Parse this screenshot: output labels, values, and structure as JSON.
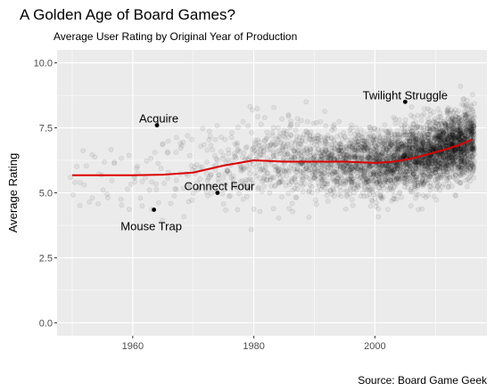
{
  "chart_data": {
    "type": "scatter",
    "title": "A Golden Age of Board Games?",
    "subtitle": "Average User Rating by Original Year of Production",
    "xlabel": "",
    "ylabel": "Average Rating",
    "caption": "Source: Board Game Geek",
    "xlim": [
      1947.5,
      2018.5
    ],
    "ylim": [
      -0.5,
      10.5
    ],
    "x_ticks": [
      1960,
      1980,
      2000
    ],
    "y_ticks": [
      0.0,
      2.5,
      5.0,
      7.5,
      10.0
    ],
    "y_tick_labels": [
      "0.0",
      "2.5",
      "5.0",
      "7.5",
      "10.0"
    ],
    "grid": true,
    "colors": {
      "panel": "#ebebeb",
      "grid": "#ffffff",
      "points": "#000000",
      "smooth": "#dd0000"
    },
    "scatter_density": {
      "description_free": true,
      "points_alpha": 0.1,
      "year_range": [
        1950,
        2016
      ],
      "rating_center_by_year": [
        [
          1950,
          5.7
        ],
        [
          1960,
          5.7
        ],
        [
          1970,
          5.8
        ],
        [
          1980,
          6.2
        ],
        [
          1990,
          6.2
        ],
        [
          2000,
          6.1
        ],
        [
          2005,
          6.3
        ],
        [
          2010,
          6.6
        ],
        [
          2016,
          7.0
        ]
      ]
    },
    "smooth_line": {
      "x": [
        1950,
        1955,
        1960,
        1965,
        1970,
        1975,
        1980,
        1985,
        1990,
        1995,
        2000,
        2003,
        2006,
        2009,
        2012,
        2014,
        2016
      ],
      "y": [
        5.68,
        5.68,
        5.68,
        5.7,
        5.78,
        6.05,
        6.25,
        6.2,
        6.2,
        6.2,
        6.15,
        6.2,
        6.32,
        6.5,
        6.7,
        6.85,
        7.05
      ]
    },
    "annotations": [
      {
        "label": "Twilight Struggle",
        "x": 2005,
        "y": 8.5
      },
      {
        "label": "Acquire",
        "x": 1964,
        "y": 7.6
      },
      {
        "label": "Connect Four",
        "x": 1974,
        "y": 5.0
      },
      {
        "label": "Mouse Trap",
        "x": 1963.5,
        "y": 4.35
      }
    ]
  }
}
